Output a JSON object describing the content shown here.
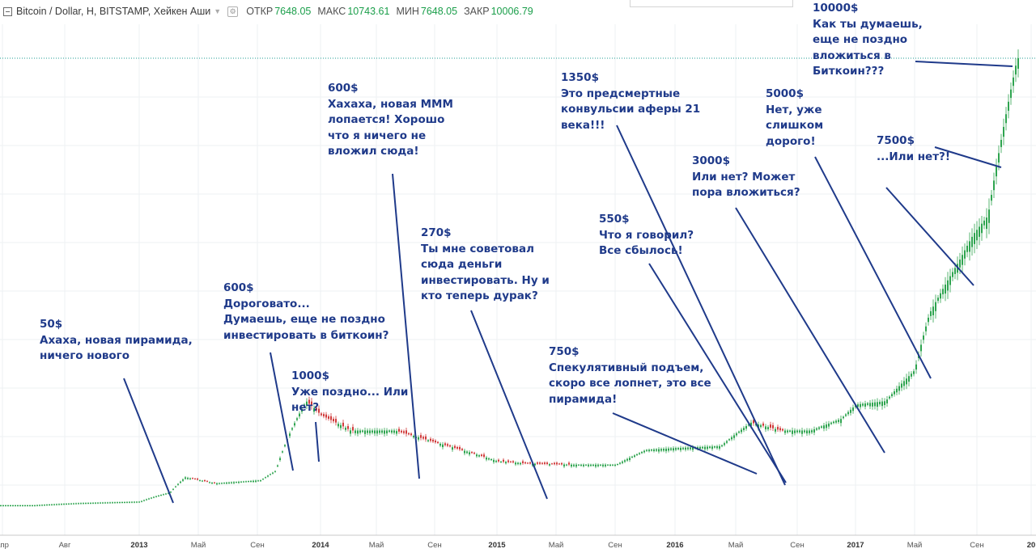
{
  "header": {
    "symbol": "Bitcoin / Dollar, H, BITSTAMP, Хейкен Аши",
    "open_label": "ОТКР",
    "open_value": "7648.05",
    "high_label": "МАКС",
    "high_value": "10743.61",
    "low_label": "МИН",
    "low_value": "7648.05",
    "close_label": "ЗАКР",
    "close_value": "10006.79"
  },
  "colors": {
    "up": "#2ea44f",
    "down": "#d03a3a",
    "annotation": "#1f3a8a",
    "grid": "#eef0f3",
    "price_line": "#1f9e93"
  },
  "chart_data": {
    "type": "candlestick",
    "series": [
      {
        "name": "Bitcoin / Dollar",
        "x": [
          "2012-06",
          "2012-09",
          "2013-01",
          "2013-03",
          "2013-04",
          "2013-06",
          "2013-09",
          "2013-10",
          "2013-11",
          "2013-12",
          "2014-01",
          "2014-03",
          "2014-06",
          "2014-09",
          "2015-01",
          "2015-03",
          "2015-06",
          "2015-09",
          "2015-11",
          "2016-01",
          "2016-04",
          "2016-06",
          "2016-08",
          "2016-10",
          "2016-12",
          "2017-01",
          "2017-03",
          "2017-05",
          "2017-06",
          "2017-08",
          "2017-09",
          "2017-10",
          "2017-11",
          "2017-12"
        ],
        "values": [
          5,
          10,
          14,
          50,
          140,
          100,
          120,
          190,
          600,
          1000,
          800,
          600,
          600,
          450,
          270,
          250,
          240,
          240,
          380,
          400,
          420,
          700,
          600,
          600,
          750,
          950,
          1000,
          1500,
          2600,
          3800,
          4500,
          5000,
          7500,
          10000
        ]
      }
    ],
    "x_ticks": [
      "апр",
      "Авг",
      "2013",
      "Май",
      "Сен",
      "2014",
      "Май",
      "Сен",
      "2015",
      "Май",
      "Сен",
      "2016",
      "Май",
      "Сен",
      "2017",
      "Май",
      "Сен",
      "20"
    ],
    "y_reference": 10000
  },
  "annotations": [
    {
      "id": "50",
      "lines": [
        "50$",
        "Ахаха, новая пирамида,",
        "ничего нового"
      ]
    },
    {
      "id": "600a",
      "lines": [
        "600$",
        "Дороговато...",
        "Думаешь, еще не поздно",
        "инвестировать в биткоин?"
      ]
    },
    {
      "id": "1000",
      "lines": [
        "1000$",
        "Уже поздно... Или",
        "нет?"
      ]
    },
    {
      "id": "600b",
      "lines": [
        "600$",
        "Хахаха, новая МММ",
        "лопается! Хорошо",
        "что я ничего не",
        "вложил сюда!"
      ]
    },
    {
      "id": "270",
      "lines": [
        "270$",
        "Ты мне советовал",
        "сюда деньги",
        "инвестировать. Ну и",
        "кто теперь дурак?"
      ]
    },
    {
      "id": "750",
      "lines": [
        "750$",
        "Спекулятивный подъем,",
        "скоро все лопнет, это все",
        "пирамида!"
      ]
    },
    {
      "id": "550",
      "lines": [
        "550$",
        "Что я говорил?",
        "Все сбылось!"
      ]
    },
    {
      "id": "1350",
      "lines": [
        "1350$",
        "Это предсмертные",
        "конвульсии аферы 21",
        "века!!!"
      ]
    },
    {
      "id": "3000",
      "lines": [
        "3000$",
        "Или нет? Может",
        "пора вложиться?"
      ]
    },
    {
      "id": "5000",
      "lines": [
        "5000$",
        "Нет, уже",
        "слишком",
        "дорого!"
      ]
    },
    {
      "id": "7500",
      "lines": [
        "7500$",
        "...Или нет?!"
      ]
    },
    {
      "id": "10000",
      "lines": [
        "10000$",
        "Как ты думаешь,",
        "еще не поздно",
        "вложиться в",
        "Биткоин???"
      ]
    }
  ]
}
